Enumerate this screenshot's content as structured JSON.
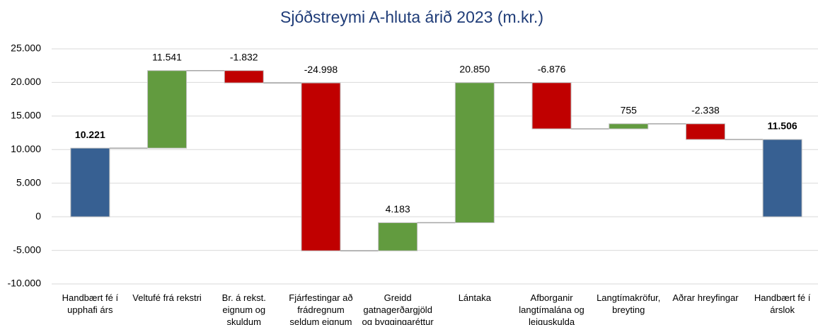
{
  "chart_data": {
    "type": "waterfall",
    "title": "Sjóðstreymi A-hluta árið 2023 (m.kr.)",
    "categories": [
      "Handbært fé í upphafi árs",
      "Veltufé frá rekstri",
      "Br. á rekst. eignum og skuldum",
      "Fjárfestingar að frádregnum seldum eignum",
      "Greidd gatnagerðargjöld og byggingaréttur",
      "Lántaka",
      "Afborganir langtímalána og leiguskulda",
      "Langtímakröfur, breyting",
      "Aðrar hreyfingar",
      "Handbært fé í árslok"
    ],
    "values": [
      10221,
      11541,
      -1832,
      -24998,
      4183,
      20850,
      -6876,
      755,
      -2338,
      11506
    ],
    "value_labels": [
      "10.221",
      "11.541",
      "-1.832",
      "-24.998",
      "4.183",
      "20.850",
      "-6.876",
      "755",
      "-2.338",
      "11.506"
    ],
    "colors": [
      "#376092",
      "#629b3f",
      "#c00000",
      "#c00000",
      "#629b3f",
      "#629b3f",
      "#c00000",
      "#629b3f",
      "#c00000",
      "#376092"
    ],
    "total_color": "#376092",
    "ylim": [
      -10000,
      25000
    ],
    "yticks": [
      {
        "value": -10000,
        "label": "-10.000"
      },
      {
        "value": -5000,
        "label": "-5.000"
      },
      0,
      {
        "value": 5000,
        "label": "5.000"
      },
      {
        "value": 10000,
        "label": "10.000"
      },
      {
        "value": 15000,
        "label": "15.000"
      },
      {
        "value": 20000,
        "label": "20.000"
      },
      {
        "value": 25000,
        "label": "25.000"
      }
    ],
    "grid": true
  }
}
